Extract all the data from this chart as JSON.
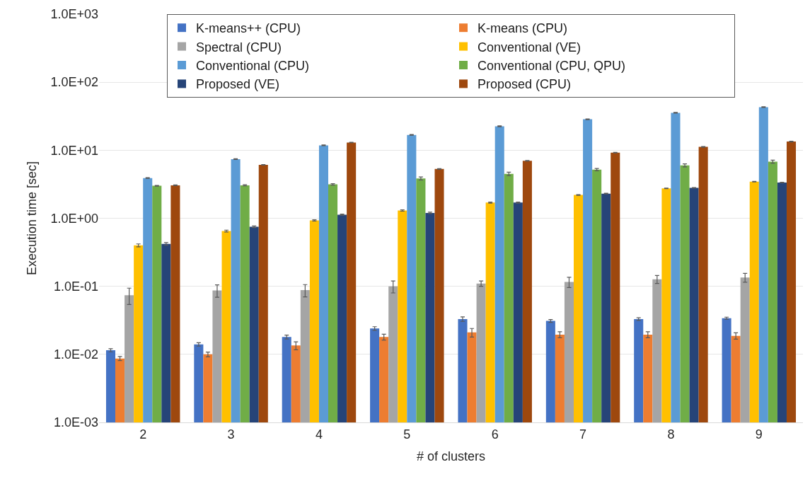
{
  "chart_data": {
    "type": "bar",
    "xlabel": "# of clusters",
    "ylabel": "Execution time [sec]",
    "log": "y",
    "grid": "y",
    "legend": "top",
    "categories": [
      "2",
      "3",
      "4",
      "5",
      "6",
      "7",
      "8",
      "9"
    ],
    "ylim": [
      0.001,
      1000
    ],
    "yticks": [
      {
        "value": 0.001,
        "label": "1.0E-03"
      },
      {
        "value": 0.01,
        "label": "1.0E-02"
      },
      {
        "value": 0.1,
        "label": "1.0E-01"
      },
      {
        "value": 1,
        "label": "1.0E+00"
      },
      {
        "value": 10,
        "label": "1.0E+01"
      },
      {
        "value": 100,
        "label": "1.0E+02"
      },
      {
        "value": 1000,
        "label": "1.0E+03"
      }
    ],
    "series": [
      {
        "name": "K-means++ (CPU)",
        "color": "#4472c4",
        "values": [
          0.0115,
          0.014,
          0.018,
          0.024,
          0.033,
          0.031,
          0.033,
          0.034
        ],
        "errors": [
          0.0006,
          0.0008,
          0.0012,
          0.0015,
          0.0025,
          0.0015,
          0.0015,
          0.0012
        ]
      },
      {
        "name": "K-means (CPU)",
        "color": "#ed7d31",
        "values": [
          0.0087,
          0.01,
          0.0135,
          0.018,
          0.021,
          0.0195,
          0.0195,
          0.0187
        ],
        "errors": [
          0.0006,
          0.0008,
          0.0018,
          0.0018,
          0.003,
          0.002,
          0.002,
          0.002
        ]
      },
      {
        "name": "Spectral (CPU)",
        "color": "#a5a5a5",
        "values": [
          0.074,
          0.087,
          0.088,
          0.1,
          0.11,
          0.116,
          0.127,
          0.135
        ],
        "errors": [
          0.02,
          0.018,
          0.018,
          0.02,
          0.01,
          0.02,
          0.017,
          0.02
        ]
      },
      {
        "name": "Conventional (VE)",
        "color": "#ffc000",
        "values": [
          0.4,
          0.65,
          0.93,
          1.3,
          1.7,
          2.2,
          2.75,
          3.45
        ],
        "errors": [
          0.02,
          0.02,
          0.02,
          0.03,
          0.03,
          0.03,
          0.03,
          0.04
        ]
      },
      {
        "name": "Conventional (CPU)",
        "color": "#5b9bd5",
        "values": [
          3.9,
          7.4,
          11.8,
          16.8,
          22.5,
          28.5,
          35.5,
          43
        ],
        "errors": [
          0.05,
          0.1,
          0.15,
          0.2,
          0.3,
          0.3,
          0.4,
          0.5
        ]
      },
      {
        "name": "Conventional (CPU, QPU)",
        "color": "#70ad47",
        "values": [
          3.0,
          3.05,
          3.15,
          3.85,
          4.5,
          5.2,
          6.0,
          6.8
        ],
        "errors": [
          0.04,
          0.06,
          0.08,
          0.2,
          0.25,
          0.2,
          0.3,
          0.35
        ]
      },
      {
        "name": "Proposed (VE)",
        "color": "#264478",
        "values": [
          0.42,
          0.75,
          1.13,
          1.2,
          1.7,
          2.3,
          2.8,
          3.35
        ],
        "errors": [
          0.02,
          0.02,
          0.02,
          0.03,
          0.03,
          0.03,
          0.03,
          0.04
        ]
      },
      {
        "name": "Proposed (CPU)",
        "color": "#9e480e",
        "values": [
          3.05,
          6.1,
          13.0,
          5.3,
          7.0,
          9.2,
          11.2,
          13.4
        ],
        "errors": [
          0.04,
          0.06,
          0.1,
          0.06,
          0.08,
          0.1,
          0.12,
          0.14
        ]
      }
    ]
  }
}
